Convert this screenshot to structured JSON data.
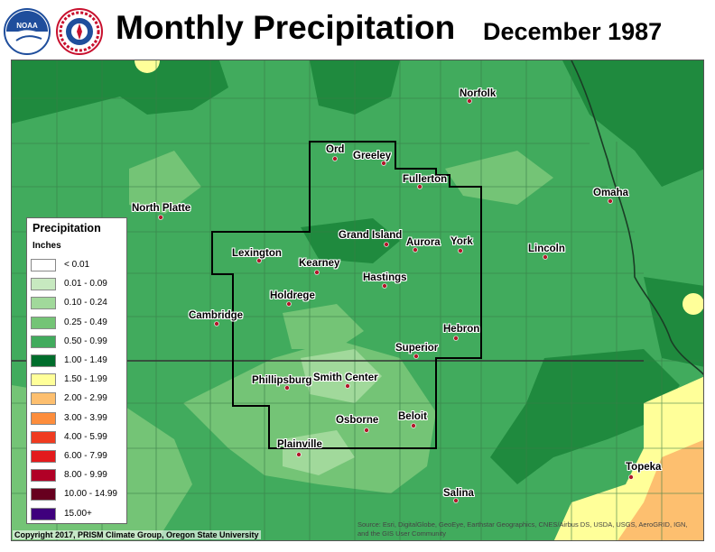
{
  "title": "Monthly Precipitation",
  "period": "December 1987",
  "logos": {
    "noaa": "NOAA",
    "nws": "NATIONAL WEATHER SERVICE"
  },
  "legend": {
    "title": "Precipitation",
    "units": "Inches",
    "items": [
      {
        "label": "< 0.01",
        "color": "#ffffff"
      },
      {
        "label": "0.01 - 0.09",
        "color": "#c7e9c0"
      },
      {
        "label": "0.10 - 0.24",
        "color": "#a1d99b"
      },
      {
        "label": "0.25 - 0.49",
        "color": "#74c476"
      },
      {
        "label": "0.50 - 0.99",
        "color": "#41ab5d"
      },
      {
        "label": "1.00 - 1.49",
        "color": "#006d2c"
      },
      {
        "label": "1.50 - 1.99",
        "color": "#ffff99"
      },
      {
        "label": "2.00 - 2.99",
        "color": "#fdbf6f"
      },
      {
        "label": "3.00 - 3.99",
        "color": "#fd8d3c"
      },
      {
        "label": "4.00 - 5.99",
        "color": "#f03b20"
      },
      {
        "label": "6.00 - 7.99",
        "color": "#e31a1c"
      },
      {
        "label": "8.00 - 9.99",
        "color": "#b10026"
      },
      {
        "label": "10.00 - 14.99",
        "color": "#67001f"
      },
      {
        "label": "15.00+",
        "color": "#3f007d"
      }
    ]
  },
  "cities": {
    "norfolk": "Norfolk",
    "ord": "Ord",
    "greeley": "Greeley",
    "fullerton": "Fullerton",
    "omaha": "Omaha",
    "north_platte": "North Platte",
    "grand_island": "Grand Island",
    "aurora": "Aurora",
    "york": "York",
    "lincoln": "Lincoln",
    "lexington": "Lexington",
    "kearney": "Kearney",
    "hastings": "Hastings",
    "holdrege": "Holdrege",
    "cambridge": "Cambridge",
    "hebron": "Hebron",
    "superior": "Superior",
    "phillipsburg": "Phillipsburg",
    "smith_center": "Smith Center",
    "osborne": "Osborne",
    "beloit": "Beloit",
    "plainville": "Plainville",
    "topeka": "Topeka",
    "salina": "Salina"
  },
  "copyright": "Copyright 2017, PRISM Climate Group, Oregon State University",
  "source": "Source: Esri, DigitalGlobe, GeoEye, Earthstar Geographics, CNES/Airbus DS, USDA, USGS, AeroGRID, IGN, and the GIS User Community"
}
